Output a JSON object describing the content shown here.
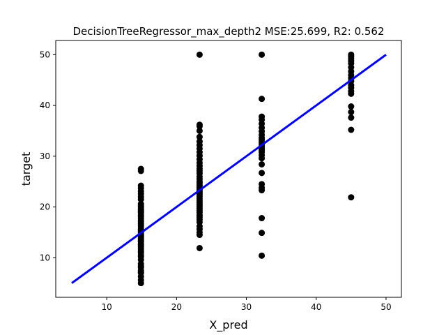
{
  "chart_data": {
    "type": "scatter",
    "title": "DecisionTreeRegressor_max_depth2 MSE:25.699, R2: 0.562",
    "xlabel": "X_pred",
    "ylabel": "target",
    "xlim": [
      2.7,
      52.2
    ],
    "ylim": [
      2.2,
      52.8
    ],
    "xticks": [
      10,
      20,
      30,
      40,
      50
    ],
    "yticks": [
      10,
      20,
      30,
      40,
      50
    ],
    "grid": false,
    "point_color": "#000000",
    "line_color": "#0000ff",
    "series": [
      {
        "kind": "points",
        "groups": [
          {
            "x": 14.9,
            "y": [
              5.0,
              5.6,
              6.3,
              7.0,
              7.2,
              7.5,
              8.1,
              8.4,
              8.8,
              9.6,
              10.2,
              10.5,
              11.0,
              11.3,
              11.7,
              12.1,
              12.5,
              12.7,
              13.1,
              13.3,
              13.5,
              13.8,
              14.1,
              14.3,
              14.5,
              14.9,
              15.2,
              15.4,
              15.6,
              16.1,
              16.4,
              16.7,
              17.1,
              17.4,
              17.8,
              18.2,
              18.5,
              18.9,
              19.1,
              19.4,
              19.6,
              19.9,
              20.2,
              20.6,
              21.5,
              22.0,
              22.6,
              23.1,
              23.7,
              24.2,
              27.1,
              27.5
            ]
          },
          {
            "x": 23.3,
            "y": [
              11.9,
              14.5,
              15.0,
              15.6,
              16.2,
              17.0,
              17.5,
              18.0,
              18.4,
              18.9,
              19.3,
              19.7,
              20.1,
              20.4,
              20.8,
              21.2,
              21.6,
              22.0,
              22.4,
              22.8,
              23.1,
              23.5,
              23.9,
              24.3,
              24.7,
              25.0,
              25.5,
              26.0,
              26.6,
              27.1,
              27.5,
              28.1,
              28.7,
              29.4,
              30.1,
              30.8,
              31.5,
              32.2,
              32.9,
              33.8,
              35.0,
              35.9,
              36.2,
              50.0
            ]
          },
          {
            "x": 32.2,
            "y": [
              10.4,
              14.9,
              17.8,
              23.3,
              23.8,
              24.5,
              26.7,
              28.4,
              29.6,
              30.2,
              30.8,
              31.2,
              31.6,
              32.0,
              32.4,
              32.8,
              33.2,
              33.6,
              34.2,
              34.9,
              35.6,
              36.4,
              37.2,
              37.8,
              41.3,
              50.0
            ]
          },
          {
            "x": 45.0,
            "y": [
              21.9,
              35.2,
              37.6,
              38.7,
              39.8,
              42.3,
              42.8,
              43.5,
              44.0,
              44.8,
              45.4,
              46.0,
              46.7,
              47.5,
              48.3,
              48.8,
              49.3,
              49.7,
              50.0
            ]
          }
        ]
      },
      {
        "kind": "line",
        "x": [
          5,
          50
        ],
        "y": [
          5,
          50
        ]
      }
    ]
  }
}
